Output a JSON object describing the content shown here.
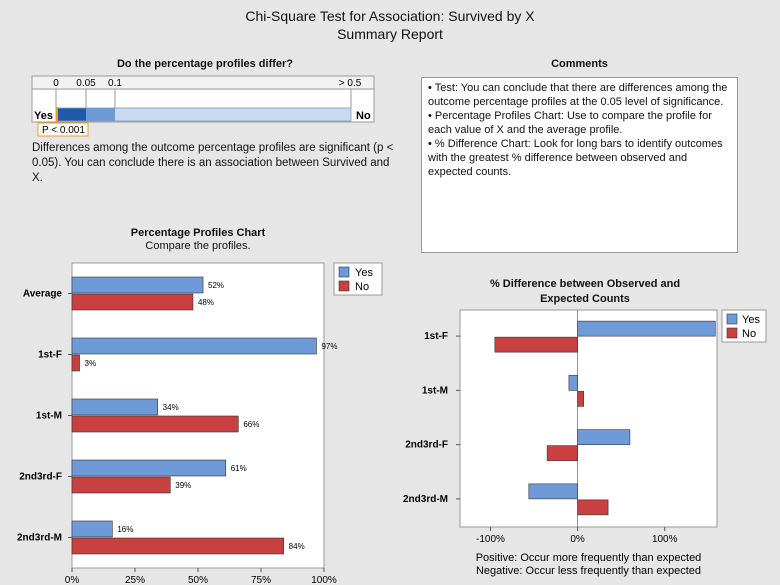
{
  "report": {
    "title": "Chi-Square Test for Association: Survived by X",
    "subtitle": "Summary Report"
  },
  "pvalue_panel": {
    "heading": "Do the percentage profiles differ?",
    "scale_labels": [
      "0",
      "0.05",
      "0.1",
      "> 0.5"
    ],
    "yes_label": "Yes",
    "no_label": "No",
    "p_label": "P < 0.001",
    "p_value": 0.001,
    "description": "Differences among the outcome percentage profiles are significant (p < 0.05). You can conclude there is an association between Survived and X."
  },
  "comments": {
    "heading": "Comments",
    "items": [
      "•  Test: You can conclude that there are differences among the outcome percentage profiles at the 0.05 level of significance.",
      "•  Percentage Profiles Chart: Use to compare the profile for each value of X and the average profile.",
      "•  % Difference Chart: Look for long bars to identify outcomes with the greatest % difference between observed and expected counts."
    ]
  },
  "colors": {
    "yes": "#6f9ad8",
    "no": "#c8403f",
    "pv_dark": "#1f5aa8",
    "pv_mid": "#6e9ad6",
    "pv_light": "#c8daf0"
  },
  "chart_data": [
    {
      "type": "bar",
      "orientation": "horizontal",
      "title": "Percentage Profiles Chart",
      "subtitle": "Compare the profiles.",
      "categories": [
        "Average",
        "1st-F",
        "1st-M",
        "2nd3rd-F",
        "2nd3rd-M"
      ],
      "series": [
        {
          "name": "Yes",
          "values": [
            52,
            97,
            34,
            61,
            16
          ]
        },
        {
          "name": "No",
          "values": [
            48,
            3,
            66,
            39,
            84
          ]
        }
      ],
      "value_labels": {
        "Yes": [
          "52%",
          "97%",
          "34%",
          "61%",
          "16%"
        ],
        "No": [
          "48%",
          "3%",
          "66%",
          "39%",
          "84%"
        ]
      },
      "xlim": [
        0,
        100
      ],
      "ticks": [
        "0%",
        "25%",
        "50%",
        "75%",
        "100%"
      ],
      "legend": "top-right"
    },
    {
      "type": "bar",
      "orientation": "horizontal",
      "title": "% Difference between Observed and Expected Counts",
      "categories": [
        "1st-F",
        "1st-M",
        "2nd3rd-F",
        "2nd3rd-M"
      ],
      "series": [
        {
          "name": "Yes",
          "values": [
            158,
            -10,
            60,
            -56
          ]
        },
        {
          "name": "No",
          "values": [
            -95,
            7,
            -35,
            35
          ]
        }
      ],
      "xlim": [
        -135,
        160
      ],
      "ticks": [
        "-100%",
        "0%",
        "100%"
      ],
      "legend": "top-right",
      "notes": [
        "Positive: Occur more frequently than expected",
        "Negative: Occur less frequently than expected"
      ]
    }
  ]
}
